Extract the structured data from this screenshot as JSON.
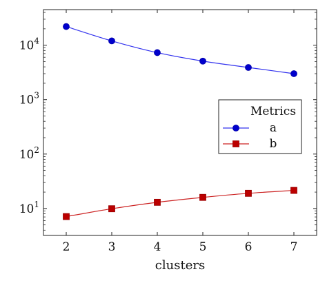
{
  "chart_data": {
    "type": "line",
    "title": "",
    "xlabel": "clusters",
    "ylabel": "",
    "x": [
      2,
      3,
      4,
      5,
      6,
      7
    ],
    "xlim": [
      1.5,
      7.5
    ],
    "yscale": "log",
    "ylim": [
      3.2,
      45000
    ],
    "ytick_values": [
      10,
      100,
      1000,
      10000
    ],
    "ytick_labels": [
      {
        "base": "10",
        "exp": "1"
      },
      {
        "base": "10",
        "exp": "2"
      },
      {
        "base": "10",
        "exp": "3"
      },
      {
        "base": "10",
        "exp": "4"
      }
    ],
    "grid": false,
    "legend": {
      "title": "Metrics",
      "placement": "center-right"
    },
    "series": [
      {
        "name": "a",
        "values": [
          22000,
          12000,
          7300,
          5100,
          3900,
          3000
        ],
        "color": "#3333ee",
        "marker": "circle"
      },
      {
        "name": "b",
        "values": [
          7.1,
          9.9,
          13,
          16,
          19,
          21.5
        ],
        "color": "#cc2222",
        "marker": "square"
      }
    ]
  }
}
